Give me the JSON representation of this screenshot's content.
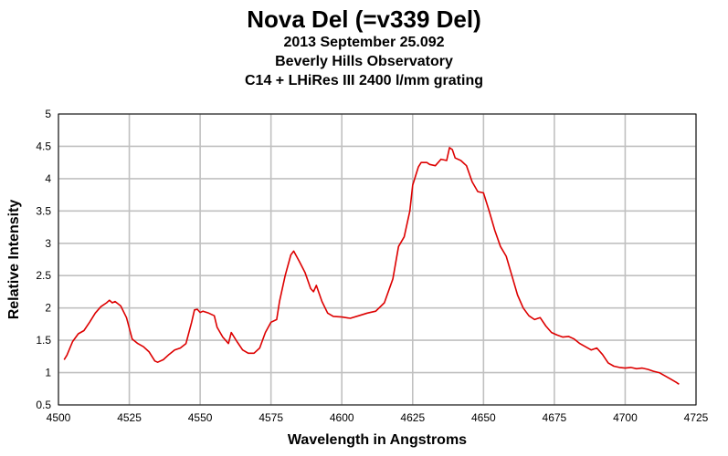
{
  "chart_data": {
    "type": "line",
    "title": "Nova Del (=v339 Del)",
    "subtitles": [
      "2013 September 25.092",
      "Beverly Hills Observatory",
      "C14 + LHiRes III 2400 l/mm grating"
    ],
    "xlabel": "Wavelength in Angstroms",
    "ylabel": "Relative Intensity",
    "xlim": [
      4500,
      4725
    ],
    "ylim": [
      0.5,
      5
    ],
    "xticks": [
      "4500",
      "4525",
      "4550",
      "4575",
      "4600",
      "4625",
      "4650",
      "4675",
      "4700",
      "4725"
    ],
    "yticks": [
      "0.5",
      "1",
      "1.5",
      "2",
      "2.5",
      "3",
      "3.5",
      "4",
      "4.5",
      "5"
    ],
    "grid": true,
    "legend": "none",
    "line_color": "#dd0000",
    "series": [
      {
        "x": [
          4502,
          4503,
          4505,
          4507,
          4509,
          4511,
          4513,
          4515,
          4517,
          4518,
          4519,
          4520,
          4522,
          4524,
          4526,
          4528,
          4530,
          4532,
          4534,
          4535,
          4537,
          4539,
          4541,
          4543,
          4545,
          4547,
          4548,
          4549,
          4550,
          4551,
          4553,
          4555,
          4556,
          4558,
          4560,
          4561,
          4563,
          4565,
          4567,
          4569,
          4571,
          4573,
          4575,
          4577,
          4578,
          4580,
          4582,
          4583,
          4585,
          4587,
          4589,
          4590,
          4591,
          4593,
          4595,
          4597,
          4600,
          4603,
          4606,
          4609,
          4612,
          4615,
          4618,
          4620,
          4622,
          4624,
          4625,
          4627,
          4628,
          4630,
          4631,
          4633,
          4635,
          4637,
          4638,
          4639,
          4640,
          4642,
          4644,
          4646,
          4648,
          4650,
          4652,
          4654,
          4656,
          4658,
          4660,
          4662,
          4664,
          4666,
          4668,
          4670,
          4672,
          4674,
          4676,
          4678,
          4680,
          4682,
          4684,
          4686,
          4688,
          4690,
          4692,
          4694,
          4696,
          4698,
          4700,
          4702,
          4704,
          4706,
          4708,
          4710,
          4712,
          4714,
          4716,
          4718,
          4719
        ],
        "y": [
          1.2,
          1.27,
          1.48,
          1.6,
          1.65,
          1.78,
          1.92,
          2.02,
          2.08,
          2.12,
          2.08,
          2.1,
          2.03,
          1.85,
          1.52,
          1.45,
          1.4,
          1.32,
          1.18,
          1.16,
          1.2,
          1.28,
          1.35,
          1.38,
          1.45,
          1.78,
          1.97,
          1.98,
          1.93,
          1.95,
          1.92,
          1.88,
          1.7,
          1.55,
          1.45,
          1.62,
          1.48,
          1.35,
          1.3,
          1.3,
          1.38,
          1.62,
          1.78,
          1.82,
          2.1,
          2.5,
          2.82,
          2.88,
          2.72,
          2.55,
          2.3,
          2.25,
          2.35,
          2.1,
          1.92,
          1.87,
          1.86,
          1.84,
          1.88,
          1.92,
          1.95,
          2.08,
          2.45,
          2.95,
          3.1,
          3.5,
          3.9,
          4.18,
          4.25,
          4.25,
          4.22,
          4.2,
          4.3,
          4.28,
          4.48,
          4.45,
          4.32,
          4.28,
          4.2,
          3.95,
          3.8,
          3.78,
          3.5,
          3.2,
          2.95,
          2.8,
          2.5,
          2.2,
          2.0,
          1.88,
          1.82,
          1.85,
          1.72,
          1.62,
          1.58,
          1.55,
          1.56,
          1.52,
          1.45,
          1.4,
          1.35,
          1.38,
          1.28,
          1.15,
          1.1,
          1.08,
          1.07,
          1.08,
          1.06,
          1.07,
          1.05,
          1.02,
          1.0,
          0.95,
          0.9,
          0.85,
          0.82
        ]
      }
    ]
  }
}
